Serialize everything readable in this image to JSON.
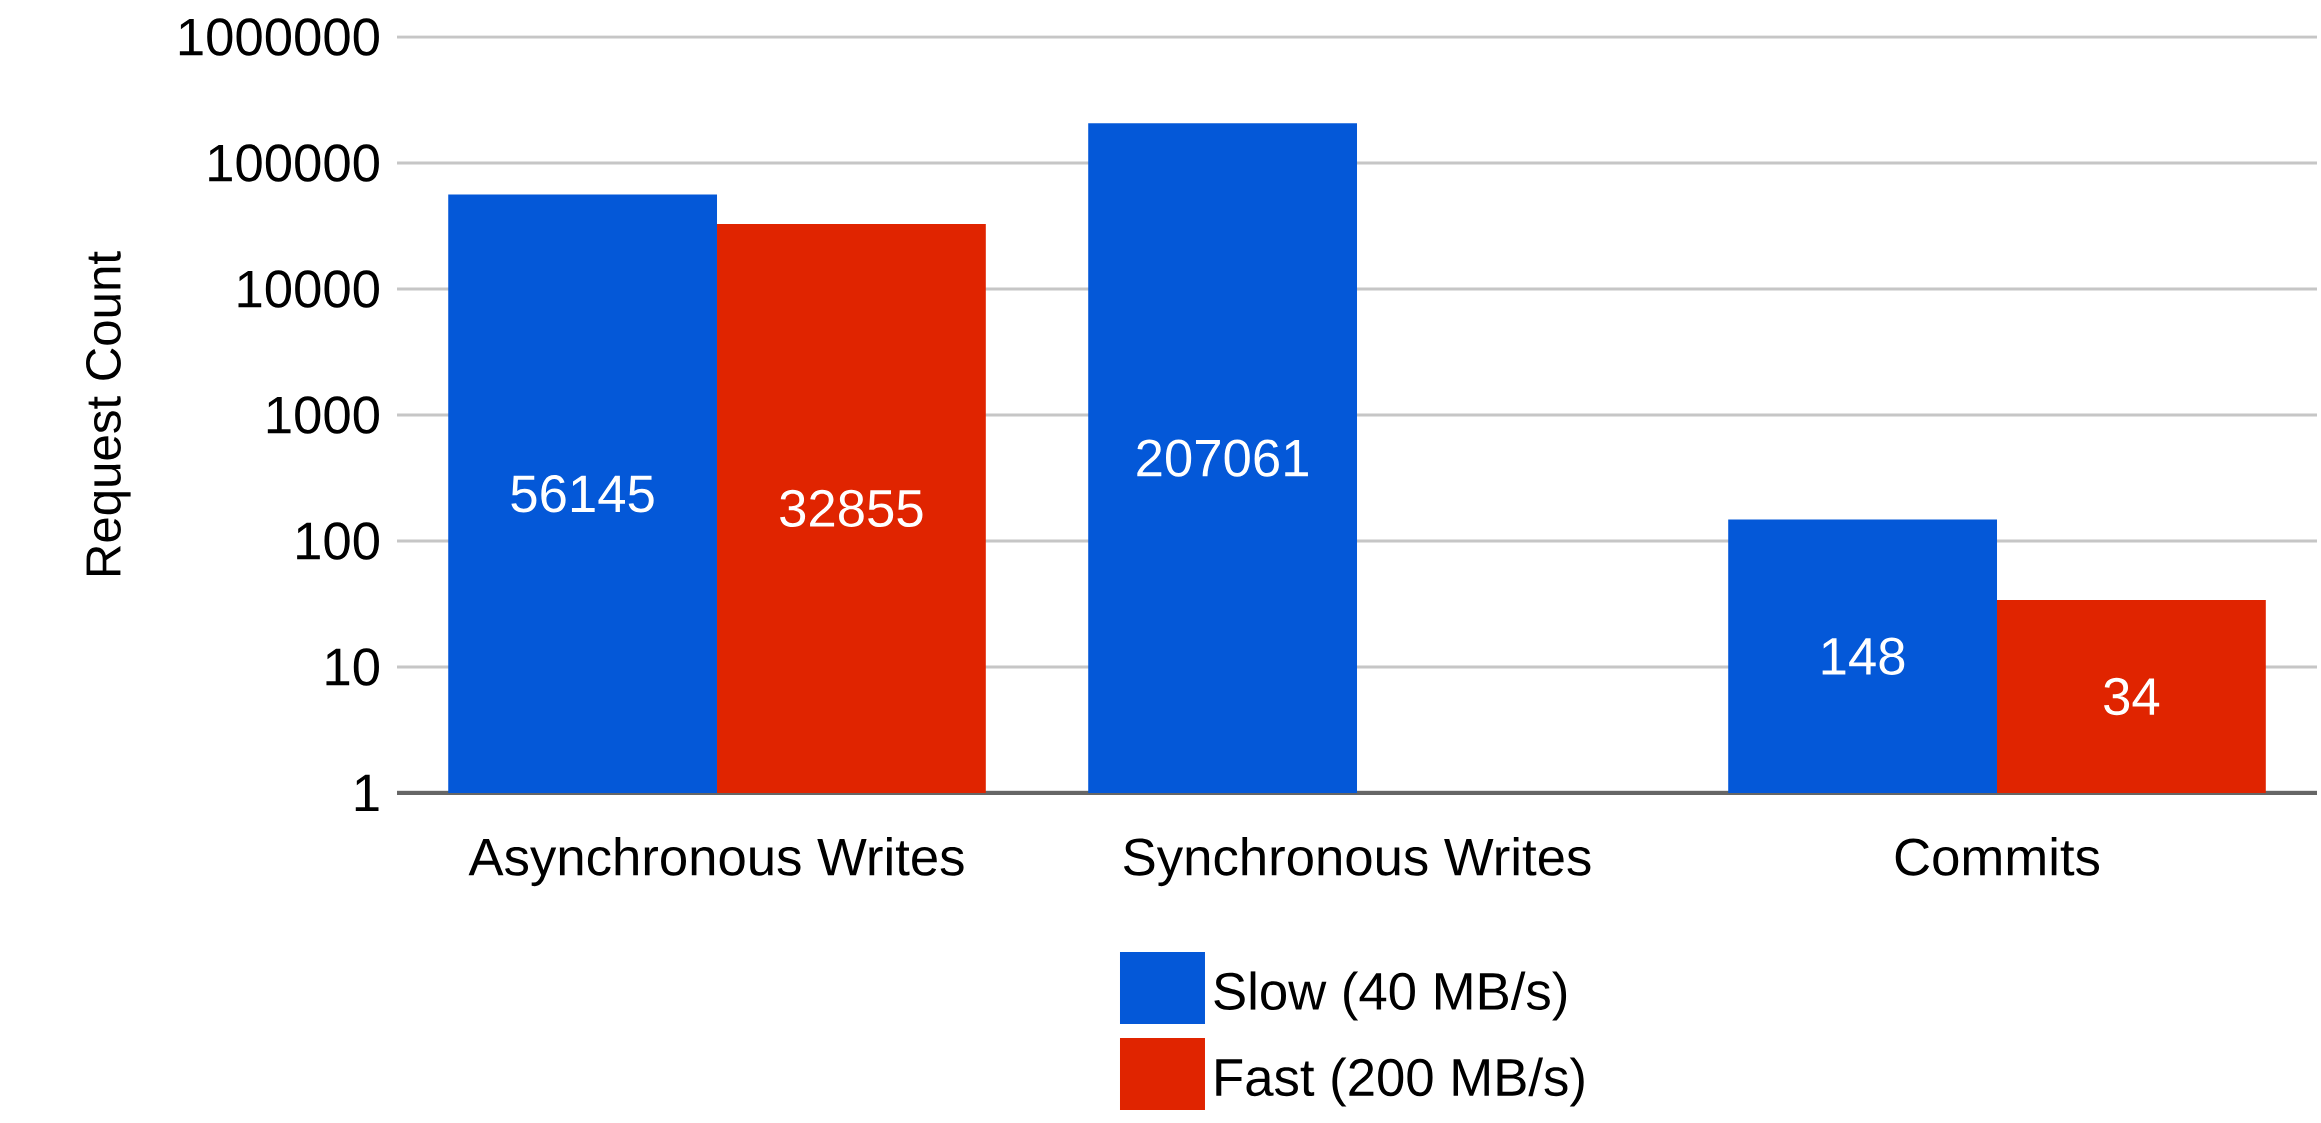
{
  "chart_data": {
    "type": "bar",
    "ylabel": "Request Count",
    "categories": [
      "Asynchronous Writes",
      "Synchronous Writes",
      "Commits"
    ],
    "series": [
      {
        "name": "Slow (40 MB/s)",
        "color": "#0458d8",
        "values": [
          56145,
          207061,
          148
        ]
      },
      {
        "name": "Fast (200 MB/s)",
        "color": "#e02400",
        "values": [
          32855,
          null,
          34
        ]
      }
    ],
    "log": true,
    "ylim": [
      1,
      1000000
    ],
    "yticks": [
      1,
      10,
      100,
      1000,
      10000,
      100000,
      1000000
    ],
    "grid": "y",
    "data_labels": true,
    "legend": "bottom"
  }
}
